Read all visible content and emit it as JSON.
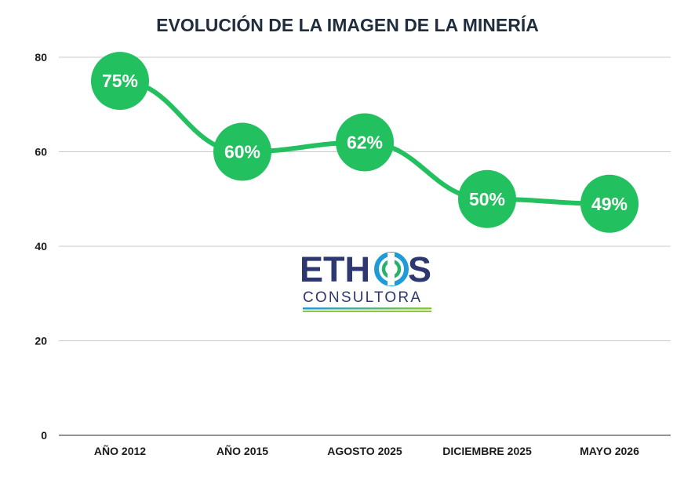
{
  "chart_data": {
    "type": "line",
    "title": "EVOLUCIÓN DE LA IMAGEN DE LA MINERÍA",
    "xlabel": "",
    "ylabel": "",
    "categories": [
      "AÑO 2012",
      "AÑO 2015",
      "AGOSTO 2025",
      "DICIEMBRE 2025",
      "MAYO 2026"
    ],
    "series": [
      {
        "values": [
          75,
          60,
          62,
          50,
          49
        ],
        "labels": [
          "75%",
          "60%",
          "62%",
          "50%",
          "49%"
        ]
      }
    ],
    "ylim": [
      0,
      80
    ],
    "yticks": [
      "0",
      "20",
      "40",
      "60",
      "80"
    ],
    "grid": true,
    "legend": "none",
    "colors": {
      "line": "#22c05e",
      "marker": "#22c05e",
      "grid": "#c8c8c8",
      "title": "#1f2d3d"
    }
  },
  "logo": {
    "name": "ETHOS",
    "subtitle": "CONSULTORA",
    "colors": {
      "text": "#2e3770",
      "ring_outer": "#1f9bd7",
      "ring_inner": "#29b36a",
      "stripe_top": "#1f9bd7",
      "stripe_bottom": "#8cc63f"
    }
  }
}
